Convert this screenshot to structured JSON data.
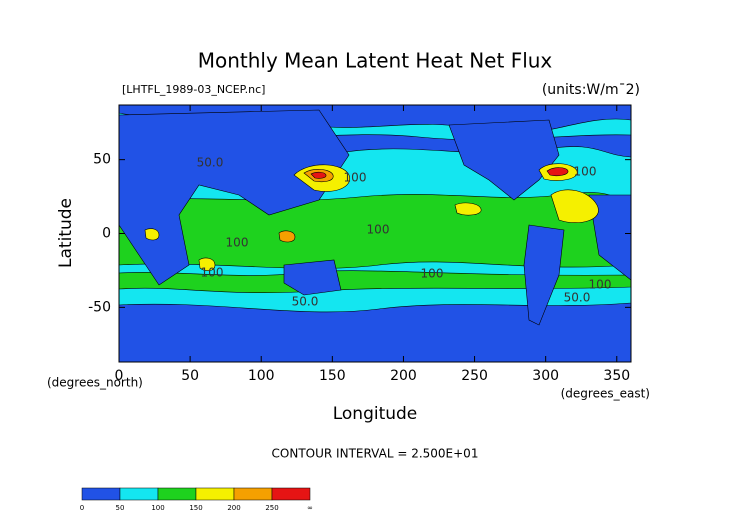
{
  "chart_data": {
    "type": "contour",
    "title": "Monthly Mean Latent Heat Net Flux",
    "subtitle": "[LHTFL_1989-03_NCEP.nc]",
    "units": "(units:W/m¯2)",
    "xlabel": "Longitude",
    "ylabel": "Latitude",
    "xunit": "(degrees_east)",
    "yunit": "(degrees_north)",
    "xlim": [
      0,
      360
    ],
    "ylim": [
      -87,
      87
    ],
    "xticks": [
      0,
      50,
      100,
      150,
      200,
      250,
      300,
      350
    ],
    "yticks": [
      -50,
      0,
      50
    ],
    "contour_labels": [
      "50.0",
      "100",
      "100",
      "100",
      "100",
      "100",
      "100",
      "100",
      "50.0",
      "50.0"
    ],
    "note": "CONTOUR INTERVAL = 2.500E+01",
    "colorbar": {
      "boundaries": [
        0,
        50,
        100,
        150,
        200,
        250
      ],
      "top_label": "∞",
      "colors": [
        "#2152e6",
        "#14e6f0",
        "#1ed21e",
        "#f5f000",
        "#f5a000",
        "#e61414"
      ]
    }
  }
}
